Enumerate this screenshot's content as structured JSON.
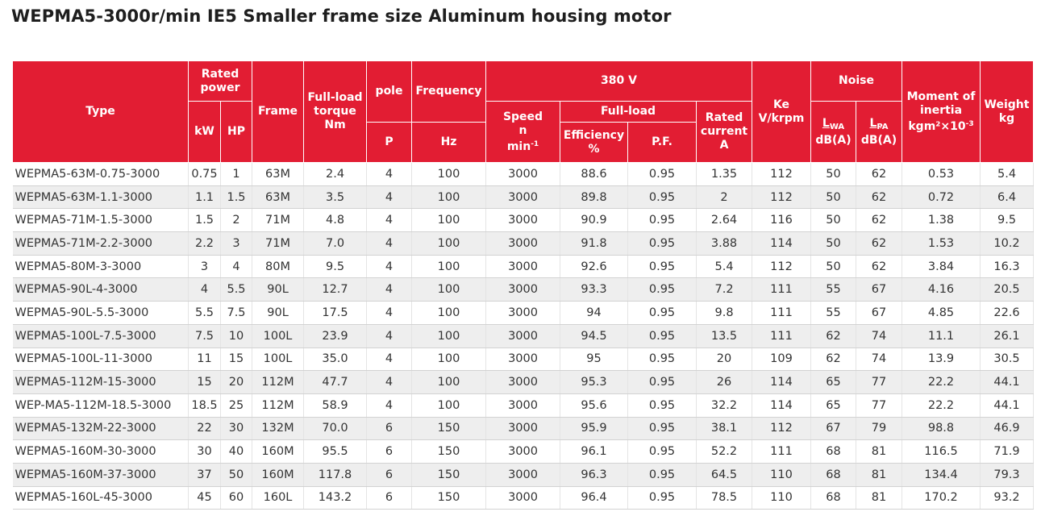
{
  "title": "WEPMA5-3000r/min IE5 Smaller frame size Aluminum housing motor",
  "headers": {
    "type": "Type",
    "rated_power": "Rated power",
    "kw": "kW",
    "hp": "HP",
    "frame": "Frame",
    "torque": "Full-load torque Nm",
    "pole": "pole",
    "pole_unit": "P",
    "frequency": "Frequency",
    "frequency_unit": "Hz",
    "voltage": "380 V",
    "speed": "Speed",
    "speed_n": "n",
    "speed_unit": "min",
    "speed_exp": "-1",
    "full_load": "Full-load",
    "efficiency": "Efficiency %",
    "pf": "P.F.",
    "rated_current": "Rated current A",
    "ke": "Ke V/krpm",
    "noise": "Noise",
    "lwa_l": "L",
    "lwa_sub": "WA",
    "lpa_l": "L",
    "lpa_sub": "PA",
    "db_a_1": "dB(A)",
    "db_a_2": "dB(A)",
    "inertia": "Moment of inertia",
    "inertia_unit": "kgm²×10",
    "inertia_exp": "-3",
    "weight": "Weight kg"
  },
  "rows": [
    [
      "WEPMA5-63M-0.75-3000",
      "0.75",
      "1",
      "63M",
      "2.4",
      "4",
      "100",
      "3000",
      "88.6",
      "0.95",
      "1.35",
      "112",
      "50",
      "62",
      "0.53",
      "5.4"
    ],
    [
      "WEPMA5-63M-1.1-3000",
      "1.1",
      "1.5",
      "63M",
      "3.5",
      "4",
      "100",
      "3000",
      "89.8",
      "0.95",
      "2",
      "112",
      "50",
      "62",
      "0.72",
      "6.4"
    ],
    [
      "WEPMA5-71M-1.5-3000",
      "1.5",
      "2",
      "71M",
      "4.8",
      "4",
      "100",
      "3000",
      "90.9",
      "0.95",
      "2.64",
      "116",
      "50",
      "62",
      "1.38",
      "9.5"
    ],
    [
      "WEPMA5-71M-2.2-3000",
      "2.2",
      "3",
      "71M",
      "7.0",
      "4",
      "100",
      "3000",
      "91.8",
      "0.95",
      "3.88",
      "114",
      "50",
      "62",
      "1.53",
      "10.2"
    ],
    [
      "WEPMA5-80M-3-3000",
      "3",
      "4",
      "80M",
      "9.5",
      "4",
      "100",
      "3000",
      "92.6",
      "0.95",
      "5.4",
      "112",
      "50",
      "62",
      "3.84",
      "16.3"
    ],
    [
      "WEPMA5-90L-4-3000",
      "4",
      "5.5",
      "90L",
      "12.7",
      "4",
      "100",
      "3000",
      "93.3",
      "0.95",
      "7.2",
      "111",
      "55",
      "67",
      "4.16",
      "20.5"
    ],
    [
      "WEPMA5-90L-5.5-3000",
      "5.5",
      "7.5",
      "90L",
      "17.5",
      "4",
      "100",
      "3000",
      "94",
      "0.95",
      "9.8",
      "111",
      "55",
      "67",
      "4.85",
      "22.6"
    ],
    [
      "WEPMA5-100L-7.5-3000",
      "7.5",
      "10",
      "100L",
      "23.9",
      "4",
      "100",
      "3000",
      "94.5",
      "0.95",
      "13.5",
      "111",
      "62",
      "74",
      "11.1",
      "26.1"
    ],
    [
      "WEPMA5-100L-11-3000",
      "11",
      "15",
      "100L",
      "35.0",
      "4",
      "100",
      "3000",
      "95",
      "0.95",
      "20",
      "109",
      "62",
      "74",
      "13.9",
      "30.5"
    ],
    [
      "WEPMA5-112M-15-3000",
      "15",
      "20",
      "112M",
      "47.7",
      "4",
      "100",
      "3000",
      "95.3",
      "0.95",
      "26",
      "114",
      "65",
      "77",
      "22.2",
      "44.1"
    ],
    [
      "WEP-MA5-112M-18.5-3000",
      "18.5",
      "25",
      "112M",
      "58.9",
      "4",
      "100",
      "3000",
      "95.6",
      "0.95",
      "32.2",
      "114",
      "65",
      "77",
      "22.2",
      "44.1"
    ],
    [
      "WEPMA5-132M-22-3000",
      "22",
      "30",
      "132M",
      "70.0",
      "6",
      "150",
      "3000",
      "95.9",
      "0.95",
      "38.1",
      "112",
      "67",
      "79",
      "98.8",
      "46.9"
    ],
    [
      "WEPMA5-160M-30-3000",
      "30",
      "40",
      "160M",
      "95.5",
      "6",
      "150",
      "3000",
      "96.1",
      "0.95",
      "52.2",
      "111",
      "68",
      "81",
      "116.5",
      "71.9"
    ],
    [
      "WEPMA5-160M-37-3000",
      "37",
      "50",
      "160M",
      "117.8",
      "6",
      "150",
      "3000",
      "96.3",
      "0.95",
      "64.5",
      "110",
      "68",
      "81",
      "134.4",
      "79.3"
    ],
    [
      "WEPMA5-160L-45-3000",
      "45",
      "60",
      "160L",
      "143.2",
      "6",
      "150",
      "3000",
      "96.4",
      "0.95",
      "78.5",
      "110",
      "68",
      "81",
      "170.2",
      "93.2"
    ]
  ]
}
